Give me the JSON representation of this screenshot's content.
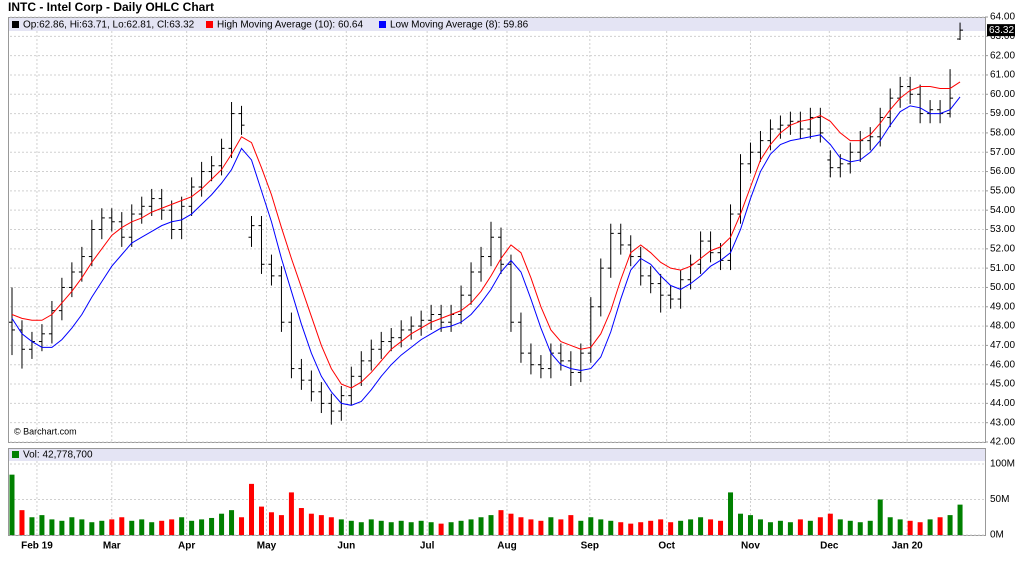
{
  "chart_data": {
    "type": "ohlc",
    "title": "INTC - Intel Corp - Daily OHLC Chart",
    "legend": [
      "Op:62.86, Hi:63.71, Lo:62.81, Cl:63.32",
      "High Moving Average (10): 60.64",
      "Low Moving Average (8): 59.86"
    ],
    "watermark": "© Barchart.com",
    "last_close_label": "63.32",
    "bar_color": "#000000",
    "ylim": [
      42,
      64
    ],
    "yticks": [
      {
        "value": 42,
        "label": "42.00"
      },
      {
        "value": 43,
        "label": "43.00"
      },
      {
        "value": 44,
        "label": "44.00"
      },
      {
        "value": 45,
        "label": "45.00"
      },
      {
        "value": 46,
        "label": "46.00"
      },
      {
        "value": 47,
        "label": "47.00"
      },
      {
        "value": 48,
        "label": "48.00"
      },
      {
        "value": 49,
        "label": "49.00"
      },
      {
        "value": 50,
        "label": "50.00"
      },
      {
        "value": 51,
        "label": "51.00"
      },
      {
        "value": 52,
        "label": "52.00"
      },
      {
        "value": 53,
        "label": "53.00"
      },
      {
        "value": 54,
        "label": "54.00"
      },
      {
        "value": 55,
        "label": "55.00"
      },
      {
        "value": 56,
        "label": "56.00"
      },
      {
        "value": 57,
        "label": "57.00"
      },
      {
        "value": 58,
        "label": "58.00"
      },
      {
        "value": 59,
        "label": "59.00"
      },
      {
        "value": 60,
        "label": "60.00"
      },
      {
        "value": 61,
        "label": "61.00"
      },
      {
        "value": 62,
        "label": "62.00"
      },
      {
        "value": 63,
        "label": "63.00"
      },
      {
        "value": 64,
        "label": "64.00"
      }
    ],
    "xlim": [
      -0.2,
      97.5
    ],
    "xticks": [
      {
        "value": 2.5,
        "label": "Feb 19"
      },
      {
        "value": 10,
        "label": "Mar"
      },
      {
        "value": 17.5,
        "label": "Apr"
      },
      {
        "value": 25.5,
        "label": "May"
      },
      {
        "value": 33.5,
        "label": "Jun"
      },
      {
        "value": 41.6,
        "label": "Jul"
      },
      {
        "value": 49.6,
        "label": "Aug"
      },
      {
        "value": 57.9,
        "label": "Sep"
      },
      {
        "value": 65.6,
        "label": "Oct"
      },
      {
        "value": 74,
        "label": "Nov"
      },
      {
        "value": 81.9,
        "label": "Dec"
      },
      {
        "value": 89.7,
        "label": "Jan 20"
      }
    ],
    "grid": true,
    "open": [
      48.2,
      47.8,
      46.8,
      47.2,
      47.6,
      48.8,
      50.0,
      50.8,
      51.6,
      53.0,
      53.6,
      53.4,
      52.6,
      53.8,
      54.2,
      54.6,
      54.0,
      53.0,
      54.2,
      55.2,
      56.0,
      56.3,
      57.2,
      59.0,
      52.6,
      53.2,
      51.2,
      50.6,
      48.2,
      45.8,
      45.2,
      44.6,
      44.0,
      43.6,
      44.4,
      45.4,
      46.2,
      46.8,
      47.2,
      47.4,
      47.8,
      48.0,
      48.3,
      48.6,
      48.2,
      48.6,
      49.6,
      50.8,
      51.6,
      52.6,
      51.2,
      48.2,
      46.6,
      46.0,
      45.8,
      46.6,
      46.2,
      45.6,
      46.6,
      49.0,
      51.0,
      52.8,
      52.2,
      51.6,
      50.6,
      50.2,
      49.6,
      49.4,
      50.4,
      51.2,
      52.4,
      51.8,
      51.4,
      53.8,
      56.4,
      57.0,
      57.6,
      58.2,
      58.4,
      58.6,
      58.2,
      58.8,
      56.6,
      56.2,
      56.4,
      57.0,
      57.6,
      57.8,
      58.8,
      59.8,
      60.4,
      60.0,
      59.0,
      59.2,
      59.0,
      62.86
    ],
    "high": [
      50.0,
      48.3,
      47.7,
      48.1,
      49.3,
      50.5,
      51.3,
      52.1,
      53.5,
      54.1,
      54.1,
      53.9,
      54.3,
      54.7,
      55.1,
      55.1,
      54.5,
      54.7,
      55.7,
      56.5,
      56.8,
      57.7,
      59.6,
      59.4,
      53.7,
      53.7,
      51.7,
      51.1,
      48.7,
      46.3,
      45.7,
      45.1,
      44.5,
      44.9,
      45.9,
      46.7,
      47.3,
      47.7,
      47.9,
      48.3,
      48.5,
      48.8,
      49.1,
      49.1,
      49.1,
      50.1,
      51.3,
      52.1,
      53.4,
      53.1,
      51.7,
      48.7,
      47.1,
      46.5,
      47.1,
      47.1,
      46.7,
      47.1,
      49.5,
      51.5,
      53.3,
      53.3,
      52.7,
      52.1,
      51.1,
      50.7,
      50.1,
      50.9,
      51.7,
      52.9,
      52.9,
      52.3,
      54.3,
      56.9,
      57.5,
      58.1,
      58.7,
      58.9,
      59.1,
      59.1,
      59.3,
      59.3,
      57.1,
      56.9,
      57.5,
      58.1,
      58.3,
      59.3,
      60.3,
      60.9,
      60.9,
      60.5,
      59.7,
      59.7,
      61.3,
      63.71
    ],
    "low": [
      46.5,
      45.8,
      46.3,
      46.7,
      47.1,
      48.3,
      49.5,
      50.3,
      51.1,
      52.5,
      52.9,
      52.1,
      52.1,
      53.3,
      53.7,
      53.5,
      52.5,
      52.5,
      53.7,
      54.7,
      55.5,
      55.8,
      56.7,
      57.9,
      52.1,
      50.7,
      50.1,
      47.7,
      45.3,
      44.7,
      44.1,
      43.5,
      42.9,
      43.1,
      43.9,
      44.9,
      45.7,
      46.3,
      46.7,
      46.9,
      47.3,
      47.5,
      47.8,
      47.7,
      47.7,
      48.1,
      49.1,
      50.3,
      51.1,
      50.7,
      47.7,
      46.1,
      45.5,
      45.3,
      45.3,
      45.7,
      44.9,
      45.1,
      46.1,
      48.5,
      50.5,
      51.7,
      51.1,
      50.1,
      49.7,
      48.7,
      48.9,
      48.9,
      49.9,
      50.7,
      51.3,
      50.9,
      50.9,
      53.3,
      55.9,
      56.5,
      57.1,
      57.7,
      57.9,
      57.7,
      57.7,
      57.5,
      55.7,
      55.7,
      55.9,
      56.5,
      57.1,
      57.3,
      58.3,
      59.3,
      59.5,
      58.5,
      58.5,
      58.5,
      58.8,
      62.81
    ],
    "close": [
      47.8,
      46.8,
      47.2,
      47.6,
      48.8,
      50.0,
      50.8,
      51.6,
      53.0,
      53.6,
      53.4,
      52.6,
      53.8,
      54.2,
      54.6,
      54.0,
      53.0,
      54.2,
      55.2,
      56.0,
      56.3,
      57.2,
      59.0,
      58.4,
      53.2,
      51.2,
      50.6,
      48.2,
      45.8,
      45.2,
      44.6,
      44.0,
      43.6,
      44.4,
      45.4,
      46.2,
      46.8,
      47.2,
      47.4,
      47.8,
      48.0,
      48.3,
      48.6,
      48.2,
      48.6,
      49.6,
      50.8,
      51.6,
      52.6,
      51.2,
      48.2,
      46.6,
      46.0,
      45.8,
      46.6,
      46.2,
      45.6,
      46.6,
      49.0,
      51.0,
      52.8,
      52.2,
      51.6,
      50.6,
      50.2,
      49.6,
      49.4,
      50.4,
      51.2,
      52.4,
      51.8,
      51.4,
      53.8,
      56.4,
      57.0,
      57.6,
      58.2,
      58.4,
      58.6,
      58.2,
      58.8,
      58.0,
      56.2,
      56.4,
      57.0,
      57.6,
      57.8,
      58.8,
      59.8,
      60.4,
      60.0,
      59.0,
      59.2,
      59.0,
      59.8,
      63.32
    ],
    "series": [
      {
        "name": "High Moving Average (10)",
        "color": "#ff0000",
        "values": [
          48.6,
          48.4,
          48.3,
          48.3,
          48.6,
          49.2,
          49.8,
          50.5,
          51.3,
          52.0,
          52.7,
          53.1,
          53.4,
          53.6,
          53.9,
          54.1,
          54.3,
          54.5,
          54.7,
          55.1,
          55.6,
          56.1,
          56.9,
          57.8,
          57.5,
          56.2,
          54.8,
          53.1,
          51.5,
          50.0,
          48.5,
          47.0,
          45.8,
          45.0,
          44.8,
          45.1,
          45.6,
          46.2,
          46.8,
          47.2,
          47.6,
          47.9,
          48.2,
          48.4,
          48.6,
          48.8,
          49.2,
          49.8,
          50.6,
          51.5,
          52.2,
          51.8,
          50.5,
          49.0,
          47.8,
          47.2,
          47.0,
          46.8,
          46.9,
          47.6,
          48.8,
          50.4,
          51.8,
          52.2,
          51.8,
          51.3,
          51.0,
          50.9,
          51.1,
          51.5,
          51.9,
          52.1,
          52.6,
          53.8,
          55.2,
          56.6,
          57.4,
          58.0,
          58.4,
          58.6,
          58.7,
          58.9,
          58.6,
          58.0,
          57.6,
          57.6,
          57.9,
          58.5,
          59.2,
          59.8,
          60.2,
          60.4,
          60.4,
          60.3,
          60.3,
          60.64
        ]
      },
      {
        "name": "Low Moving Average (8)",
        "color": "#0000ff",
        "values": [
          48.4,
          47.6,
          47.2,
          46.9,
          46.9,
          47.3,
          47.9,
          48.6,
          49.5,
          50.3,
          51.1,
          51.7,
          52.3,
          52.6,
          52.9,
          53.2,
          53.4,
          53.5,
          53.8,
          54.3,
          54.8,
          55.4,
          56.1,
          57.2,
          56.6,
          55.0,
          53.4,
          51.5,
          49.8,
          48.1,
          46.6,
          45.4,
          44.6,
          44.0,
          43.9,
          44.1,
          44.7,
          45.4,
          46.0,
          46.5,
          46.9,
          47.3,
          47.6,
          47.9,
          48.0,
          48.2,
          48.6,
          49.2,
          49.9,
          50.8,
          51.4,
          50.8,
          49.4,
          47.9,
          46.6,
          46.0,
          45.8,
          45.7,
          45.8,
          46.4,
          47.7,
          49.4,
          50.9,
          51.5,
          51.2,
          50.6,
          50.1,
          49.9,
          50.2,
          50.6,
          51.1,
          51.4,
          51.8,
          53.0,
          54.6,
          56.0,
          56.9,
          57.4,
          57.6,
          57.7,
          57.8,
          57.9,
          57.4,
          56.7,
          56.5,
          56.6,
          57.0,
          57.6,
          58.4,
          59.1,
          59.4,
          59.3,
          59.0,
          59.0,
          59.2,
          59.86
        ]
      }
    ],
    "volume": {
      "label": "Vol: 42,778,700",
      "up_color": "#008000",
      "down_color": "#ff0000",
      "ylim": [
        0,
        100
      ],
      "yticks": [
        {
          "value": 0,
          "label": "0M"
        },
        {
          "value": 50,
          "label": "50M"
        },
        {
          "value": 100,
          "label": "100M"
        }
      ],
      "values": [
        85,
        35,
        25,
        28,
        22,
        20,
        25,
        22,
        18,
        20,
        22,
        25,
        20,
        22,
        18,
        20,
        22,
        25,
        20,
        22,
        24,
        30,
        35,
        25,
        72,
        40,
        32,
        28,
        60,
        38,
        30,
        28,
        25,
        22,
        20,
        18,
        22,
        20,
        18,
        20,
        18,
        20,
        18,
        16,
        18,
        20,
        22,
        25,
        28,
        35,
        30,
        25,
        22,
        20,
        25,
        22,
        28,
        20,
        25,
        22,
        20,
        18,
        16,
        18,
        20,
        22,
        18,
        20,
        22,
        25,
        22,
        20,
        60,
        30,
        28,
        22,
        18,
        20,
        18,
        22,
        20,
        25,
        30,
        22,
        20,
        18,
        20,
        50,
        25,
        22,
        20,
        18,
        22,
        25,
        28,
        42.7787
      ]
    }
  }
}
